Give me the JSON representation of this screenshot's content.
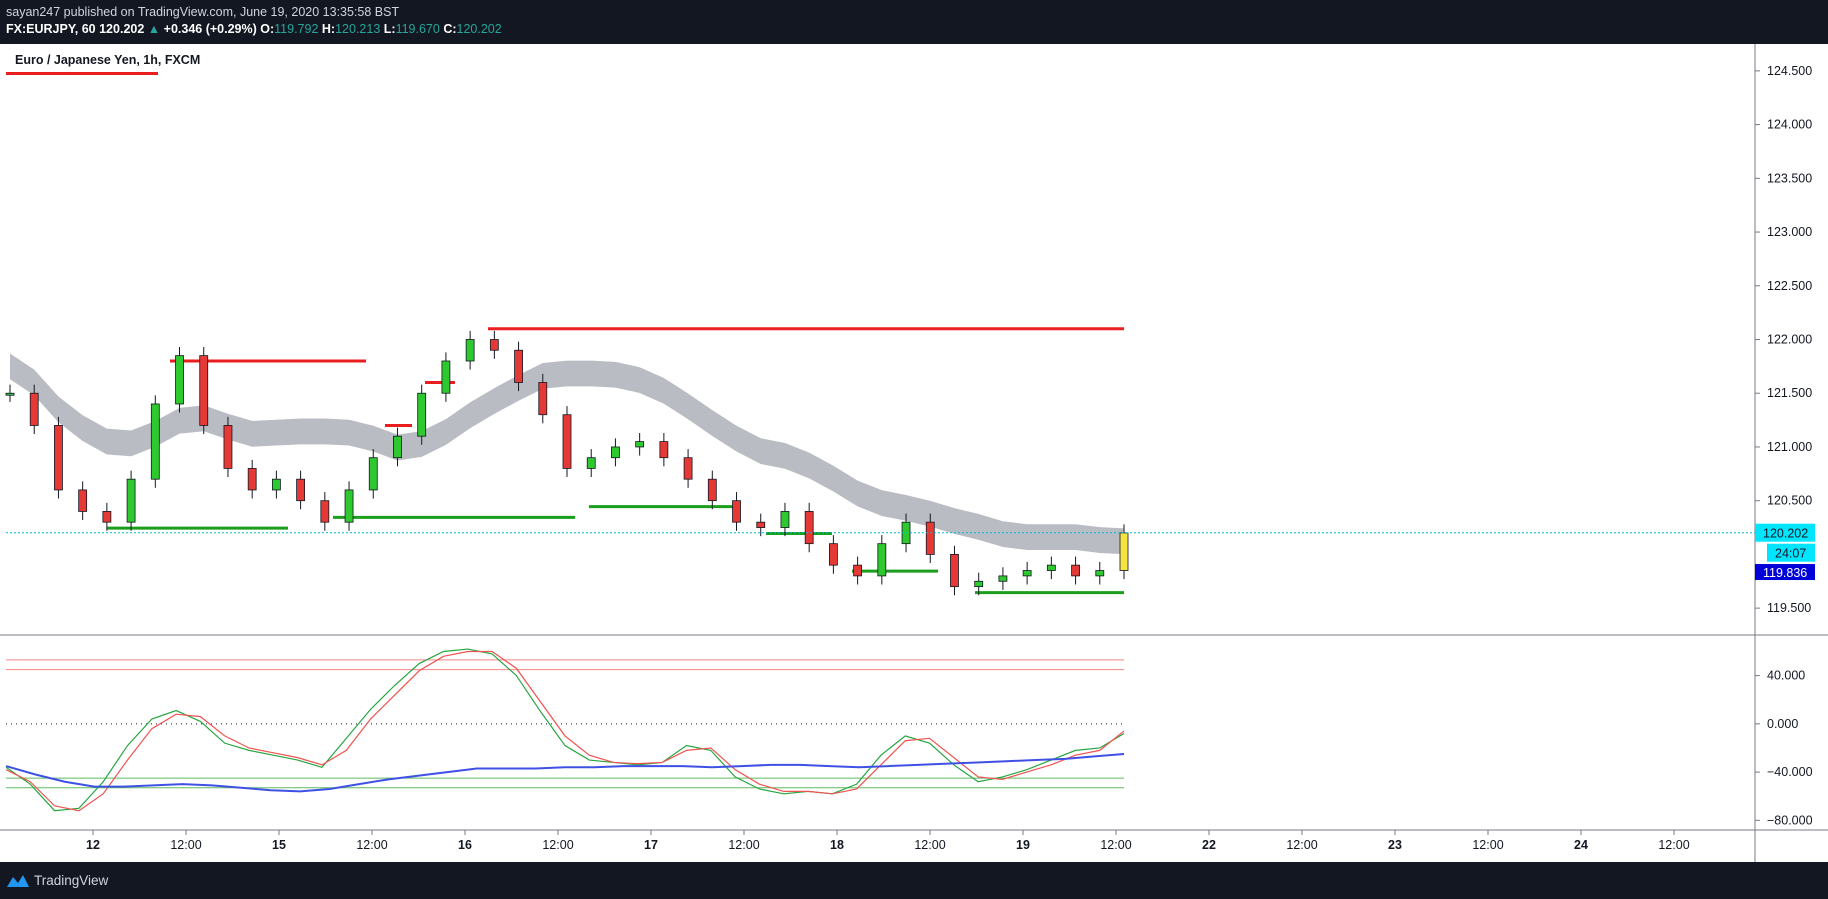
{
  "header": {
    "publisher_line": "sayan247 published on TradingView.com, June 19, 2020 13:35:58 BST",
    "symbol": "FX:EURJPY, 60",
    "last": "120.202",
    "change_arrow": "▲",
    "change": "+0.346 (+0.29%)",
    "o_label": "O:",
    "o": "119.792",
    "h_label": "H:",
    "h": "120.213",
    "l_label": "L:",
    "l": "119.670",
    "c_label": "C:",
    "c": "120.202"
  },
  "symbol_title": "Euro / Japanese Yen, 1h, FXCM",
  "footer": {
    "brand": "TradingView",
    "logo_icon": "tradingview-logo-icon"
  },
  "colors": {
    "bull": "#26a69a",
    "bear": "#ef5350",
    "accent": "#00bcd4",
    "resistance": "#e91e1e",
    "support": "#1b9e1b",
    "band": "#b2b5be"
  },
  "chart_data": [
    {
      "type": "candlestick",
      "interval": "1h",
      "ylim": [
        119.25,
        124.75
      ],
      "price_axis_ticks": [
        "124.500",
        "124.000",
        "123.500",
        "123.000",
        "122.500",
        "122.000",
        "121.500",
        "121.000",
        "120.500",
        "119.500"
      ],
      "time_axis_ticks": [
        {
          "label": "12",
          "bold": true
        },
        {
          "label": "12:00",
          "bold": false
        },
        {
          "label": "15",
          "bold": true
        },
        {
          "label": "12:00",
          "bold": false
        },
        {
          "label": "16",
          "bold": true
        },
        {
          "label": "12:00",
          "bold": false
        },
        {
          "label": "17",
          "bold": true
        },
        {
          "label": "12:00",
          "bold": false
        },
        {
          "label": "18",
          "bold": true
        },
        {
          "label": "12:00",
          "bold": false
        },
        {
          "label": "19",
          "bold": true
        },
        {
          "label": "12:00",
          "bold": false
        },
        {
          "label": "22",
          "bold": true
        },
        {
          "label": "12:00",
          "bold": false
        },
        {
          "label": "23",
          "bold": true
        },
        {
          "label": "12:00",
          "bold": false
        },
        {
          "label": "24",
          "bold": true
        },
        {
          "label": "12:00",
          "bold": false
        }
      ],
      "last_price_label": "120.202",
      "countdown_label": "24:07",
      "secondary_price_label": "119.836",
      "close_path": [
        121.5,
        121.2,
        120.6,
        120.4,
        120.3,
        120.7,
        121.4,
        121.85,
        121.2,
        120.8,
        120.6,
        120.7,
        120.5,
        120.3,
        120.6,
        120.9,
        121.1,
        121.5,
        121.8,
        122.0,
        121.9,
        121.6,
        121.3,
        120.8,
        120.9,
        121.0,
        121.05,
        120.9,
        120.7,
        120.5,
        120.3,
        120.25,
        120.4,
        120.1,
        119.9,
        119.8,
        120.1,
        120.3,
        120.0,
        119.7,
        119.75,
        119.8,
        119.85,
        119.9,
        119.8,
        119.85,
        120.2
      ],
      "resistance_levels": [
        121.8,
        122.1,
        121.2,
        121.6
      ],
      "support_levels": [
        120.3,
        120.4,
        120.5,
        120.25,
        119.9,
        119.7
      ]
    },
    {
      "type": "line",
      "yticks": [
        "40.000",
        "0.000",
        "−40.000",
        "−80.000"
      ],
      "ylim": [
        -88,
        72
      ],
      "levels": [
        53,
        45,
        0,
        -45,
        -53
      ],
      "series": [
        {
          "values": [
            -36,
            -50,
            -72,
            -70,
            -48,
            -18,
            4,
            11,
            2,
            -16,
            -22,
            -26,
            -30,
            -36,
            -12,
            12,
            32,
            50,
            60,
            62,
            58,
            40,
            10,
            -18,
            -30,
            -32,
            -34,
            -32,
            -18,
            -22,
            -44,
            -54,
            -58,
            -56,
            -58,
            -50,
            -26,
            -10,
            -16,
            -34,
            -48,
            -44,
            -38,
            -30,
            -22,
            -20,
            -8
          ]
        },
        {
          "values": [
            -38,
            -48,
            -68,
            -72,
            -58,
            -30,
            -4,
            8,
            6,
            -10,
            -20,
            -24,
            -28,
            -34,
            -22,
            4,
            24,
            44,
            56,
            60,
            60,
            46,
            18,
            -10,
            -26,
            -32,
            -33,
            -32,
            -22,
            -20,
            -38,
            -50,
            -56,
            -56,
            -58,
            -54,
            -34,
            -14,
            -12,
            -28,
            -44,
            -46,
            -40,
            -34,
            -26,
            -22,
            -6
          ]
        },
        {
          "values": [
            -35,
            -42,
            -48,
            -52,
            -52,
            -51,
            -50,
            -51,
            -53,
            -55,
            -56,
            -54,
            -50,
            -46,
            -43,
            -40,
            -37,
            -37,
            -37,
            -36,
            -36,
            -35,
            -35,
            -35,
            -36,
            -35,
            -34,
            -34,
            -35,
            -36,
            -35,
            -34,
            -33,
            -32,
            -31,
            -30,
            -29,
            -27,
            -25
          ]
        }
      ]
    }
  ]
}
